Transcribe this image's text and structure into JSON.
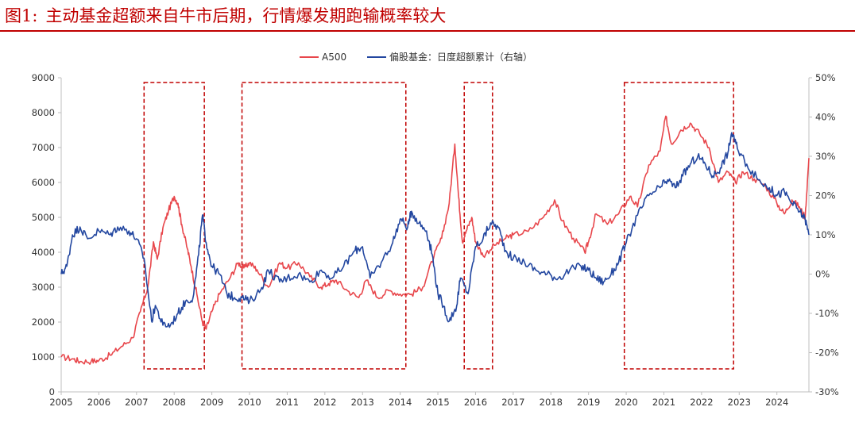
{
  "figure": {
    "label": "图1:",
    "caption": "主动基金超额来自牛市后期，行情爆发期跑输概率较大"
  },
  "chart_data": {
    "type": "line",
    "title": "",
    "x_ticks": [
      "2005",
      "2006",
      "2007",
      "2008",
      "2009",
      "2010",
      "2011",
      "2012",
      "2013",
      "2014",
      "2015",
      "2016",
      "2017",
      "2018",
      "2019",
      "2020",
      "2021",
      "2022",
      "2023",
      "2024"
    ],
    "xlim": [
      2005.0,
      2024.85
    ],
    "ylim_left": [
      0,
      9000
    ],
    "ylim_right": [
      -30,
      50
    ],
    "left_ticks": [
      "0",
      "1000",
      "2000",
      "3000",
      "4000",
      "5000",
      "6000",
      "7000",
      "8000",
      "9000"
    ],
    "right_ticks": [
      "-30%",
      "-20%",
      "-10%",
      "0%",
      "10%",
      "20%",
      "30%",
      "40%",
      "50%"
    ],
    "series": [
      {
        "name": "A500",
        "axis": "left",
        "color": "#e8474c",
        "points": [
          [
            2005.0,
            1000
          ],
          [
            2005.3,
            950
          ],
          [
            2005.5,
            870
          ],
          [
            2005.8,
            880
          ],
          [
            2006.0,
            900
          ],
          [
            2006.3,
            1050
          ],
          [
            2006.6,
            1300
          ],
          [
            2006.9,
            1550
          ],
          [
            2007.1,
            2300
          ],
          [
            2007.3,
            3000
          ],
          [
            2007.45,
            4300
          ],
          [
            2007.55,
            3800
          ],
          [
            2007.7,
            4700
          ],
          [
            2007.85,
            5200
          ],
          [
            2008.0,
            5600
          ],
          [
            2008.1,
            5400
          ],
          [
            2008.2,
            4800
          ],
          [
            2008.35,
            4100
          ],
          [
            2008.45,
            3600
          ],
          [
            2008.6,
            2800
          ],
          [
            2008.75,
            2000
          ],
          [
            2008.85,
            1800
          ],
          [
            2009.0,
            2300
          ],
          [
            2009.2,
            2800
          ],
          [
            2009.5,
            3300
          ],
          [
            2009.7,
            3700
          ],
          [
            2009.85,
            3550
          ],
          [
            2010.0,
            3700
          ],
          [
            2010.2,
            3500
          ],
          [
            2010.5,
            3000
          ],
          [
            2010.8,
            3700
          ],
          [
            2011.0,
            3550
          ],
          [
            2011.3,
            3700
          ],
          [
            2011.6,
            3300
          ],
          [
            2011.9,
            3000
          ],
          [
            2012.1,
            3100
          ],
          [
            2012.3,
            3200
          ],
          [
            2012.6,
            2900
          ],
          [
            2012.9,
            2700
          ],
          [
            2013.1,
            3200
          ],
          [
            2013.4,
            2700
          ],
          [
            2013.7,
            2900
          ],
          [
            2014.0,
            2800
          ],
          [
            2014.3,
            2800
          ],
          [
            2014.6,
            3000
          ],
          [
            2014.9,
            3900
          ],
          [
            2015.1,
            4400
          ],
          [
            2015.3,
            5400
          ],
          [
            2015.45,
            7100
          ],
          [
            2015.55,
            5600
          ],
          [
            2015.65,
            4300
          ],
          [
            2015.75,
            4600
          ],
          [
            2015.9,
            5000
          ],
          [
            2016.0,
            4300
          ],
          [
            2016.2,
            3900
          ],
          [
            2016.5,
            4200
          ],
          [
            2016.8,
            4400
          ],
          [
            2017.0,
            4500
          ],
          [
            2017.4,
            4600
          ],
          [
            2017.8,
            5000
          ],
          [
            2018.1,
            5500
          ],
          [
            2018.3,
            4900
          ],
          [
            2018.6,
            4400
          ],
          [
            2018.9,
            4000
          ],
          [
            2019.0,
            4300
          ],
          [
            2019.2,
            5100
          ],
          [
            2019.5,
            4800
          ],
          [
            2019.8,
            5100
          ],
          [
            2020.1,
            5600
          ],
          [
            2020.3,
            5300
          ],
          [
            2020.6,
            6500
          ],
          [
            2020.9,
            6900
          ],
          [
            2021.05,
            7900
          ],
          [
            2021.2,
            7100
          ],
          [
            2021.45,
            7500
          ],
          [
            2021.7,
            7700
          ],
          [
            2021.95,
            7400
          ],
          [
            2022.2,
            7000
          ],
          [
            2022.45,
            6000
          ],
          [
            2022.7,
            6300
          ],
          [
            2022.9,
            6000
          ],
          [
            2023.1,
            6300
          ],
          [
            2023.4,
            6100
          ],
          [
            2023.7,
            5900
          ],
          [
            2024.0,
            5400
          ],
          [
            2024.2,
            5100
          ],
          [
            2024.4,
            5500
          ],
          [
            2024.6,
            5300
          ],
          [
            2024.75,
            5000
          ],
          [
            2024.85,
            6700
          ]
        ]
      },
      {
        "name": "偏股基金：日度超额累计（右轴）",
        "axis": "right",
        "color": "#2347a0",
        "points": [
          [
            2005.0,
            0
          ],
          [
            2005.15,
            2
          ],
          [
            2005.3,
            10
          ],
          [
            2005.5,
            12
          ],
          [
            2005.7,
            9
          ],
          [
            2006.0,
            11
          ],
          [
            2006.3,
            10
          ],
          [
            2006.5,
            12
          ],
          [
            2006.8,
            11
          ],
          [
            2007.0,
            9
          ],
          [
            2007.2,
            4
          ],
          [
            2007.4,
            -12
          ],
          [
            2007.5,
            -8
          ],
          [
            2007.7,
            -13
          ],
          [
            2007.9,
            -13
          ],
          [
            2008.1,
            -10
          ],
          [
            2008.3,
            -7
          ],
          [
            2008.5,
            -6
          ],
          [
            2008.65,
            5
          ],
          [
            2008.75,
            15
          ],
          [
            2008.85,
            8
          ],
          [
            2009.0,
            2
          ],
          [
            2009.2,
            0
          ],
          [
            2009.4,
            -5
          ],
          [
            2009.6,
            -6
          ],
          [
            2009.8,
            -6
          ],
          [
            2010.0,
            -7
          ],
          [
            2010.3,
            -4
          ],
          [
            2010.5,
            1
          ],
          [
            2010.8,
            -2
          ],
          [
            2011.0,
            -1
          ],
          [
            2011.3,
            0
          ],
          [
            2011.6,
            -2
          ],
          [
            2011.9,
            1
          ],
          [
            2012.2,
            -1
          ],
          [
            2012.5,
            2
          ],
          [
            2012.8,
            6
          ],
          [
            2013.0,
            7
          ],
          [
            2013.2,
            -1
          ],
          [
            2013.5,
            3
          ],
          [
            2013.8,
            8
          ],
          [
            2014.0,
            14
          ],
          [
            2014.2,
            12
          ],
          [
            2014.3,
            16
          ],
          [
            2014.5,
            13
          ],
          [
            2014.7,
            11
          ],
          [
            2014.85,
            5
          ],
          [
            2015.0,
            -5
          ],
          [
            2015.1,
            -7
          ],
          [
            2015.3,
            -12
          ],
          [
            2015.5,
            -8
          ],
          [
            2015.6,
            -1
          ],
          [
            2015.8,
            -5
          ],
          [
            2016.0,
            7
          ],
          [
            2016.2,
            9
          ],
          [
            2016.4,
            13
          ],
          [
            2016.6,
            12
          ],
          [
            2016.8,
            6
          ],
          [
            2017.0,
            4
          ],
          [
            2017.3,
            3
          ],
          [
            2017.6,
            1
          ],
          [
            2017.9,
            0
          ],
          [
            2018.2,
            -1
          ],
          [
            2018.5,
            1
          ],
          [
            2018.8,
            2
          ],
          [
            2019.0,
            1
          ],
          [
            2019.2,
            -1
          ],
          [
            2019.4,
            -2
          ],
          [
            2019.6,
            0
          ],
          [
            2019.8,
            3
          ],
          [
            2020.0,
            8
          ],
          [
            2020.3,
            15
          ],
          [
            2020.6,
            20
          ],
          [
            2020.9,
            22
          ],
          [
            2021.1,
            24
          ],
          [
            2021.3,
            22
          ],
          [
            2021.5,
            25
          ],
          [
            2021.7,
            28
          ],
          [
            2021.9,
            30
          ],
          [
            2022.1,
            28
          ],
          [
            2022.3,
            25
          ],
          [
            2022.5,
            27
          ],
          [
            2022.7,
            31
          ],
          [
            2022.8,
            36
          ],
          [
            2022.95,
            32
          ],
          [
            2023.2,
            28
          ],
          [
            2023.5,
            24
          ],
          [
            2023.8,
            22
          ],
          [
            2024.0,
            20
          ],
          [
            2024.2,
            21
          ],
          [
            2024.4,
            18
          ],
          [
            2024.6,
            16
          ],
          [
            2024.75,
            14
          ],
          [
            2024.85,
            10
          ]
        ]
      }
    ],
    "highlight_periods": [
      [
        2007.2,
        2008.8
      ],
      [
        2009.8,
        2014.15
      ],
      [
        2015.7,
        2016.45
      ],
      [
        2019.95,
        2022.85
      ]
    ],
    "legend": "top-center"
  }
}
